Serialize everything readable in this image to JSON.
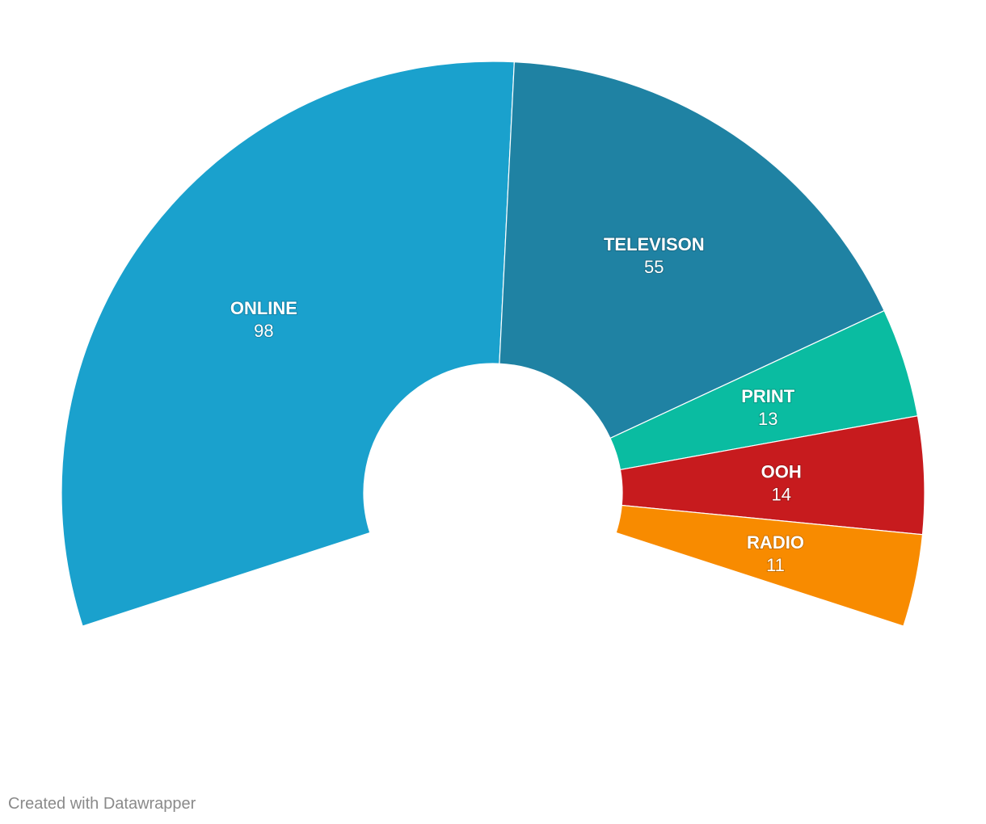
{
  "chart_data": {
    "type": "pie",
    "variant": "semi-donut",
    "categories": [
      "ONLINE",
      "TELEVISON",
      "PRINT",
      "OOH",
      "RADIO"
    ],
    "values": [
      98,
      55,
      13,
      14,
      11
    ],
    "colors": [
      "#1aa1cd",
      "#1f82a3",
      "#0abca1",
      "#c71b1e",
      "#f88b00"
    ],
    "title": "",
    "legend": "none"
  },
  "footer": {
    "credit": "Created with Datawrapper"
  }
}
